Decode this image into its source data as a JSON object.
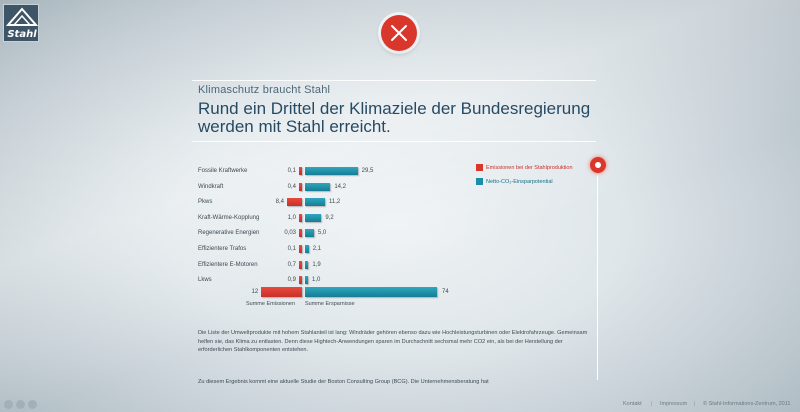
{
  "brand": {
    "logo_text": "Stahl"
  },
  "close_button": {
    "icon": "close-icon"
  },
  "kicker": "Klimaschutz braucht Stahl",
  "headline": "Rund ein Drittel der Klimaziele der Bundesregierung werden mit Stahl erreicht.",
  "chart_data": {
    "type": "bar",
    "categories": [
      "Fossile Kraftwerke",
      "Windkraft",
      "Pkws",
      "Kraft-Wärme-Kopplung",
      "Regenerative Energien",
      "Effizientere Trafos",
      "Effizientere E-Motoren",
      "Lkws"
    ],
    "series": [
      {
        "name": "Emissionen bei der Stahlproduktion",
        "color": "#d9372c",
        "values": [
          0.1,
          0.4,
          8.4,
          1.0,
          0.03,
          0.1,
          0.7,
          0.9
        ],
        "labels": [
          "0,1",
          "0,4",
          "8,4",
          "1,0",
          "0,03",
          "0,1",
          "0,7",
          "0,9"
        ]
      },
      {
        "name": "Netto-CO₂-Einsparpotential",
        "color": "#1a8ea8",
        "values": [
          29.5,
          14.2,
          11.2,
          9.2,
          5.0,
          2.1,
          1.9,
          1.0
        ],
        "labels": [
          "29,5",
          "14,2",
          "11,2",
          "9,2",
          "5,0",
          "2,1",
          "1,9",
          "1,0"
        ]
      }
    ],
    "totals": {
      "emissions": {
        "value": 12,
        "label": "12",
        "caption": "Summe Emissionen"
      },
      "savings": {
        "value": 74,
        "label": "74",
        "caption": "Summe Ersparnisse"
      }
    }
  },
  "body_paragraph_1": "Die Liste der Umweltprodukte mit hohem Stahlanteil ist lang: Windräder gehören ebenso dazu wie Hochleistungsturbinen oder Elektrofahrzeuge. Gemeinsam helfen sie, das Klima zu entlasten. Denn diese Hightech-Anwendungen sparen im Durchschnitt sechsmal mehr CO2 ein, als bei der Herstellung der erforderlichen Stahlkomponenten entstehen.",
  "body_paragraph_2": "Zu diesem Ergebnis kommt eine aktuelle Studie der Boston Consulting Group (BCG). Die Unternehmensberatung hat",
  "footer": {
    "links": [
      "Kontakt",
      "Impressum",
      "© Stahl-Informations-Zentrum, 2011"
    ],
    "separator": "|"
  },
  "social_icons": [
    "facebook-icon",
    "twitter-icon",
    "share-icon"
  ]
}
